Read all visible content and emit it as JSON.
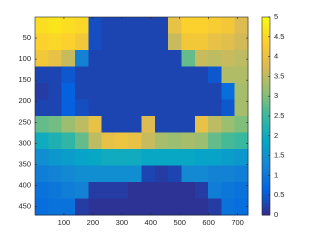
{
  "chart_data": {
    "type": "heatmap",
    "xlim": [
      0,
      736
    ],
    "ylim": [
      0,
      470
    ],
    "y_reversed": true,
    "xticks": [
      100,
      200,
      300,
      400,
      500,
      600,
      700
    ],
    "yticks": [
      50,
      100,
      150,
      200,
      250,
      300,
      350,
      400,
      450
    ],
    "clim": [
      0,
      5
    ],
    "colorbar_ticks": [
      0,
      0.5,
      1,
      1.5,
      2,
      2.5,
      3,
      3.5,
      4,
      4.5,
      5
    ],
    "colormap": [
      "#352a87",
      "#0363e1",
      "#1485d4",
      "#06a7c6",
      "#38b99e",
      "#92bf73",
      "#d9ba56",
      "#fcce2e",
      "#f9fb0e"
    ],
    "values": [
      [
        4.6,
        4.7,
        4.6,
        4.5,
        0.4,
        0.3,
        0.3,
        0.3,
        0.3,
        0.3,
        4.0,
        4.4,
        4.4,
        4.3,
        4.2,
        3.8
      ],
      [
        4.4,
        4.5,
        4.4,
        4.2,
        0.4,
        0.3,
        0.3,
        0.3,
        0.3,
        0.3,
        3.6,
        4.2,
        4.2,
        4.0,
        3.9,
        3.7
      ],
      [
        4.2,
        4.0,
        3.6,
        1.2,
        0.3,
        0.3,
        0.3,
        0.3,
        0.3,
        0.3,
        0.3,
        2.8,
        3.6,
        3.5,
        3.6,
        3.5
      ],
      [
        0.3,
        0.3,
        0.5,
        0.3,
        0.3,
        0.3,
        0.3,
        0.3,
        0.3,
        0.3,
        0.3,
        0.3,
        0.3,
        0.5,
        3.4,
        3.4
      ],
      [
        0.2,
        0.3,
        0.6,
        0.3,
        0.3,
        0.3,
        0.3,
        0.3,
        0.3,
        0.3,
        0.3,
        0.3,
        0.3,
        0.3,
        0.8,
        3.3
      ],
      [
        0.3,
        0.3,
        0.6,
        0.4,
        0.3,
        0.3,
        0.3,
        0.3,
        0.3,
        0.3,
        0.3,
        0.3,
        0.3,
        0.3,
        0.5,
        3.3
      ],
      [
        2.8,
        2.9,
        3.2,
        3.5,
        4.0,
        0.3,
        0.3,
        0.3,
        3.8,
        0.3,
        0.3,
        0.3,
        4.0,
        3.5,
        3.2,
        3.0
      ],
      [
        2.0,
        2.2,
        2.4,
        2.8,
        3.5,
        4.0,
        4.1,
        4.0,
        3.6,
        3.3,
        3.2,
        3.3,
        3.2,
        2.8,
        2.6,
        2.5
      ],
      [
        1.4,
        1.6,
        1.7,
        1.8,
        1.9,
        2.0,
        2.0,
        2.0,
        1.9,
        1.9,
        1.9,
        1.9,
        1.8,
        1.8,
        1.7,
        1.6
      ],
      [
        1.1,
        1.2,
        1.3,
        1.4,
        1.4,
        1.4,
        1.4,
        1.4,
        0.3,
        0.2,
        0.3,
        1.3,
        1.3,
        1.2,
        1.2,
        1.1
      ],
      [
        0.9,
        1.0,
        1.1,
        1.2,
        0.2,
        0.2,
        0.2,
        0.1,
        0.1,
        0.1,
        0.1,
        0.1,
        0.2,
        1.1,
        1.0,
        0.9
      ],
      [
        0.8,
        0.9,
        0.9,
        0.2,
        0.1,
        0.1,
        0.1,
        0.1,
        0.1,
        0.1,
        0.1,
        0.1,
        0.1,
        0.2,
        0.9,
        0.8
      ]
    ]
  }
}
